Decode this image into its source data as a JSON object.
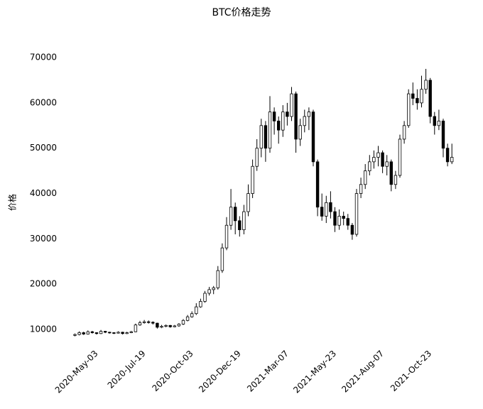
{
  "chart_data": {
    "type": "candlestick",
    "title": "BTC价格走势",
    "ylabel": "价格",
    "categories": [
      null,
      null,
      null,
      null,
      null,
      "2020-May-03",
      null,
      null,
      null,
      null,
      null,
      null,
      null,
      null,
      null,
      null,
      "2020-Jul-19",
      null,
      null,
      null,
      null,
      null,
      null,
      null,
      null,
      null,
      null,
      "2020-Oct-03",
      null,
      null,
      null,
      null,
      null,
      null,
      null,
      null,
      null,
      null,
      "2020-Dec-19",
      null,
      null,
      null,
      null,
      null,
      null,
      null,
      null,
      null,
      null,
      "2021-Mar-07",
      null,
      null,
      null,
      null,
      null,
      null,
      null,
      null,
      null,
      null,
      "2021-May-23",
      null,
      null,
      null,
      null,
      null,
      null,
      null,
      null,
      null,
      null,
      "2021-Aug-07",
      null,
      null,
      null,
      null,
      null,
      null,
      null,
      null,
      null,
      null,
      "2021-Oct-23",
      null,
      null,
      null,
      null,
      null
    ],
    "open": [
      8700,
      8900,
      9300,
      9000,
      9500,
      9300,
      9100,
      9600,
      9400,
      9300,
      9200,
      9400,
      9100,
      9300,
      9500,
      11000,
      11500,
      11700,
      11600,
      11400,
      10500,
      10700,
      10900,
      10600,
      10800,
      11200,
      12000,
      12800,
      13500,
      15000,
      16200,
      18000,
      18800,
      19200,
      23000,
      28000,
      33000,
      37000,
      34000,
      32000,
      36000,
      40000,
      46000,
      50000,
      55000,
      50000,
      58000,
      56000,
      54000,
      58000,
      57000,
      62000,
      52000,
      55000,
      57000,
      58000,
      47000,
      37000,
      35000,
      38000,
      36000,
      33000,
      35000,
      34500,
      33000,
      31000,
      40000,
      42000,
      45000,
      47000,
      48000,
      49000,
      46000,
      47000,
      42000,
      44000,
      52000,
      55000,
      62000,
      61000,
      60000,
      63000,
      65000,
      57000,
      55000,
      56000,
      50000,
      47000
    ],
    "high": [
      9100,
      9600,
      9500,
      9800,
      9700,
      9400,
      9900,
      9700,
      9500,
      9400,
      9600,
      9500,
      9500,
      9700,
      11300,
      11900,
      12100,
      12000,
      11800,
      11500,
      11000,
      11100,
      11000,
      11000,
      11400,
      12300,
      13200,
      14000,
      15800,
      16800,
      18500,
      19400,
      19600,
      24000,
      29000,
      34800,
      41000,
      38000,
      35000,
      37500,
      42000,
      47500,
      52000,
      56500,
      56000,
      61500,
      59000,
      57000,
      59500,
      60000,
      63500,
      62500,
      56500,
      58500,
      59000,
      58500,
      47500,
      40000,
      39500,
      40500,
      37000,
      36500,
      36000,
      35500,
      33500,
      41000,
      43500,
      46500,
      48500,
      49500,
      50500,
      49500,
      48500,
      47500,
      45000,
      53000,
      56000,
      63000,
      64500,
      63000,
      66000,
      67500,
      65500,
      58000,
      58500,
      56500,
      51000,
      51000
    ],
    "low": [
      8500,
      8700,
      8800,
      8900,
      9100,
      8900,
      9000,
      9200,
      9100,
      9000,
      9100,
      8900,
      9000,
      9200,
      9400,
      10800,
      11300,
      11300,
      11100,
      10200,
      10300,
      10500,
      10400,
      10500,
      10600,
      11000,
      11800,
      12600,
      13200,
      14800,
      15900,
      17500,
      17800,
      18800,
      22500,
      27500,
      32000,
      31000,
      30500,
      31000,
      35000,
      39000,
      45000,
      48000,
      47000,
      49000,
      53000,
      51000,
      52500,
      55000,
      56000,
      49000,
      50500,
      53500,
      54000,
      46000,
      35000,
      34000,
      33500,
      34500,
      31500,
      32000,
      33000,
      32000,
      29800,
      30500,
      39000,
      41000,
      44000,
      45500,
      46000,
      44500,
      44000,
      40500,
      41000,
      43500,
      51000,
      54500,
      59500,
      58500,
      59000,
      62000,
      55500,
      53000,
      54000,
      48000,
      46000,
      46500
    ],
    "close": [
      8900,
      9300,
      9000,
      9500,
      9300,
      9100,
      9600,
      9400,
      9300,
      9200,
      9400,
      9100,
      9300,
      9500,
      11000,
      11500,
      11700,
      11600,
      11400,
      10500,
      10700,
      10900,
      10600,
      10800,
      11200,
      12000,
      12800,
      13500,
      15000,
      16200,
      18000,
      18800,
      19200,
      23000,
      28000,
      33000,
      37000,
      34000,
      32000,
      36000,
      40000,
      46000,
      50000,
      55000,
      50000,
      58000,
      56000,
      54000,
      58000,
      57000,
      62000,
      52000,
      55000,
      57000,
      58000,
      47000,
      37000,
      35000,
      38000,
      36000,
      33000,
      35000,
      34500,
      33000,
      31000,
      40000,
      42000,
      45000,
      47000,
      48000,
      49000,
      46000,
      47000,
      42000,
      44000,
      52000,
      55000,
      62000,
      61000,
      60000,
      63000,
      65000,
      57000,
      55000,
      56000,
      50000,
      47000,
      48000
    ],
    "up_color": "#ffffff",
    "down_color": "#000000",
    "edge_color": "#000000",
    "ylim": [
      7500,
      73300
    ],
    "yticks": [
      10000,
      20000,
      30000,
      40000,
      50000,
      60000,
      70000
    ],
    "grid": false
  }
}
